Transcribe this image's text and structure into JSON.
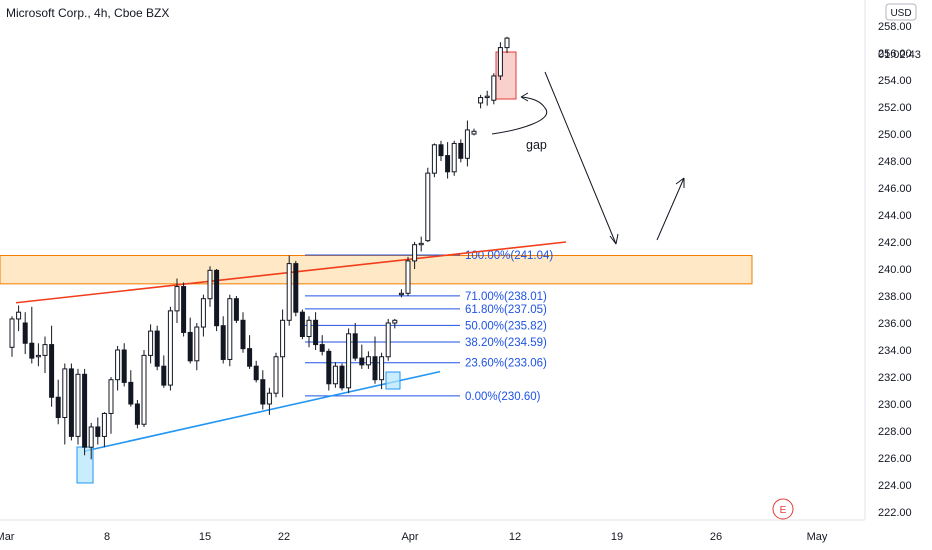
{
  "header": {
    "symbol_title": "Microsoft Corp., 4h, Cboe BZX",
    "currency_badge": "USD",
    "countdown": "01:02:43"
  },
  "colors": {
    "candle": "#131722",
    "fib": "#1e53e5",
    "resistance_line": "#f23d1b",
    "support_line": "#2196f3",
    "zone_fill": "#ffe0b2",
    "zone_border": "#f57c00",
    "box_red": "#f28b82",
    "box_blue": "#90caf9"
  },
  "chart_data": {
    "type": "candlestick",
    "title": "Microsoft Corp., 4h, Cboe BZX",
    "price_axis": {
      "ticks": [
        "258.00",
        "256.00",
        "254.00",
        "252.00",
        "250.00",
        "248.00",
        "246.00",
        "244.00",
        "242.00",
        "240.00",
        "238.00",
        "236.00",
        "234.00",
        "232.00",
        "230.00",
        "228.00",
        "226.00",
        "224.00",
        "222.00"
      ],
      "ylim": [
        220.8,
        258.8
      ],
      "unit": "USD"
    },
    "time_axis": {
      "ticks": [
        "Mar",
        "8",
        "15",
        "22",
        "Apr",
        "12",
        "19",
        "26",
        "May"
      ]
    },
    "candles_ohlc": [
      [
        234.2,
        236.5,
        233.5,
        236.3
      ],
      [
        236.3,
        237.3,
        235.4,
        236.8
      ],
      [
        236.0,
        236.8,
        233.7,
        234.5
      ],
      [
        234.5,
        237.2,
        233.0,
        233.4
      ],
      [
        233.5,
        234.5,
        232.8,
        233.6
      ],
      [
        233.6,
        235.0,
        232.3,
        234.4
      ],
      [
        234.4,
        235.8,
        229.8,
        230.5
      ],
      [
        230.5,
        231.8,
        228.5,
        229.0
      ],
      [
        229.0,
        233.0,
        227.0,
        232.6
      ],
      [
        232.6,
        233.0,
        227.3,
        227.6
      ],
      [
        227.6,
        232.6,
        227.0,
        232.2
      ],
      [
        232.2,
        232.6,
        226.2,
        226.8
      ],
      [
        226.8,
        228.6,
        225.9,
        228.3
      ],
      [
        228.3,
        229.0,
        227.0,
        227.6
      ],
      [
        227.6,
        229.4,
        226.8,
        229.3
      ],
      [
        229.3,
        232.0,
        227.8,
        231.8
      ],
      [
        231.8,
        234.3,
        231.0,
        234.0
      ],
      [
        234.0,
        234.5,
        231.3,
        231.6
      ],
      [
        231.6,
        232.5,
        229.8,
        230.0
      ],
      [
        230.0,
        230.3,
        228.2,
        228.5
      ],
      [
        228.5,
        234.0,
        228.3,
        233.6
      ],
      [
        233.6,
        235.9,
        233.0,
        235.4
      ],
      [
        235.4,
        235.8,
        232.5,
        232.8
      ],
      [
        232.8,
        233.6,
        231.2,
        231.4
      ],
      [
        231.4,
        237.2,
        231.0,
        236.9
      ],
      [
        236.9,
        239.3,
        236.0,
        238.7
      ],
      [
        238.7,
        239.0,
        235.0,
        235.3
      ],
      [
        235.3,
        236.4,
        233.0,
        233.2
      ],
      [
        233.2,
        236.0,
        232.5,
        235.7
      ],
      [
        235.7,
        238.1,
        235.0,
        237.8
      ],
      [
        237.8,
        240.2,
        237.2,
        239.9
      ],
      [
        239.9,
        240.0,
        235.4,
        235.8
      ],
      [
        235.8,
        236.5,
        233.0,
        233.3
      ],
      [
        233.3,
        238.1,
        232.8,
        237.8
      ],
      [
        237.8,
        238.0,
        236.0,
        236.2
      ],
      [
        236.2,
        236.8,
        233.8,
        234.1
      ],
      [
        234.1,
        235.1,
        232.6,
        232.8
      ],
      [
        232.8,
        233.2,
        231.6,
        231.8
      ],
      [
        231.8,
        232.5,
        229.6,
        230.0
      ],
      [
        230.0,
        231.2,
        229.2,
        230.8
      ],
      [
        230.8,
        233.8,
        230.5,
        233.5
      ],
      [
        233.5,
        237.0,
        230.5,
        236.2
      ],
      [
        236.2,
        241.0,
        235.8,
        240.4
      ],
      [
        240.4,
        240.6,
        236.5,
        236.8
      ],
      [
        236.8,
        237.0,
        234.8,
        235.0
      ],
      [
        235.0,
        236.5,
        234.2,
        236.2
      ],
      [
        236.2,
        236.8,
        234.0,
        234.4
      ],
      [
        234.4,
        235.1,
        233.6,
        233.9
      ],
      [
        233.9,
        234.1,
        231.0,
        231.5
      ],
      [
        231.5,
        233.1,
        231.2,
        232.8
      ],
      [
        232.8,
        233.0,
        231.0,
        231.2
      ],
      [
        231.2,
        235.6,
        230.8,
        235.2
      ],
      [
        235.2,
        236.0,
        233.2,
        233.4
      ],
      [
        233.4,
        234.4,
        232.6,
        232.9
      ],
      [
        232.9,
        233.9,
        232.6,
        233.5
      ],
      [
        233.5,
        235.0,
        231.5,
        231.8
      ],
      [
        231.8,
        233.8,
        231.1,
        233.5
      ],
      [
        233.5,
        236.3,
        233.2,
        236.0
      ],
      [
        236.0,
        236.3,
        235.6,
        236.2
      ],
      [
        238.1,
        238.5,
        237.9,
        238.2
      ],
      [
        238.2,
        240.9,
        238.0,
        240.6
      ],
      [
        240.6,
        242.0,
        240.0,
        241.8
      ],
      [
        241.8,
        242.4,
        241.3,
        241.9
      ],
      [
        242.1,
        247.5,
        242.0,
        247.1
      ],
      [
        247.1,
        249.3,
        246.8,
        249.2
      ],
      [
        249.2,
        249.5,
        248.0,
        248.4
      ],
      [
        248.4,
        249.4,
        246.7,
        247.2
      ],
      [
        247.2,
        249.5,
        246.9,
        249.3
      ],
      [
        249.3,
        249.6,
        247.9,
        248.2
      ],
      [
        248.2,
        251.0,
        247.6,
        250.3
      ],
      [
        250.0,
        250.4,
        249.9,
        250.2
      ],
      [
        252.3,
        252.9,
        251.9,
        252.7
      ],
      [
        252.7,
        253.2,
        252.1,
        252.8
      ],
      [
        252.5,
        254.5,
        252.2,
        254.3
      ],
      [
        254.3,
        256.8,
        254.0,
        256.4
      ],
      [
        256.4,
        257.2,
        256.0,
        257.1
      ]
    ],
    "fibonacci": [
      {
        "label": "100.00%(241.04)",
        "price": 241.04
      },
      {
        "label": "71.00%(238.01)",
        "price": 238.01
      },
      {
        "label": "61.80%(237.05)",
        "price": 237.05
      },
      {
        "label": "50.00%(235.82)",
        "price": 235.82
      },
      {
        "label": "38.20%(234.59)",
        "price": 234.59
      },
      {
        "label": "23.60%(233.06)",
        "price": 233.06
      },
      {
        "label": "0.00%(230.60)",
        "price": 230.6
      }
    ],
    "resistance_zone": [
      238.9,
      241.0
    ],
    "resistance_trendline": {
      "from_price": 237.5,
      "to_price": 242.0
    },
    "support_trendline": {
      "from_price": 226.5,
      "to_price": 232.4
    },
    "annotations": {
      "gap_label": "gap",
      "event_badge": "E"
    },
    "grid": false
  }
}
